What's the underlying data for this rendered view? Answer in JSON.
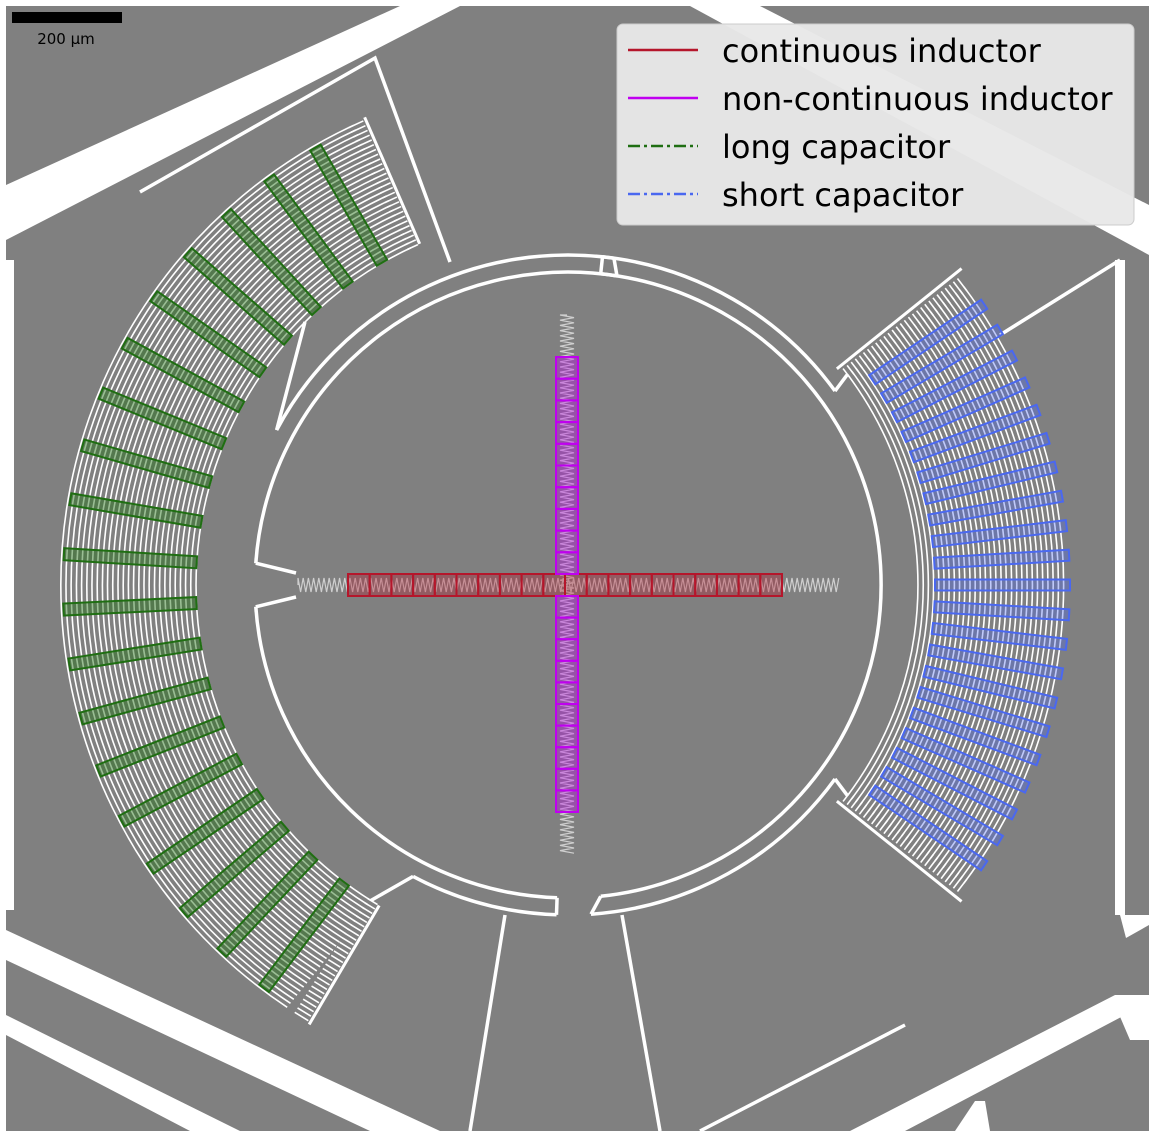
{
  "scale_bar": {
    "label": "200 µm"
  },
  "legend": {
    "items": [
      {
        "label": "continuous inductor",
        "color": "#b5162b",
        "dash": "solid"
      },
      {
        "label": "non-continuous inductor",
        "color": "#c000f0",
        "dash": "solid"
      },
      {
        "label": "long capacitor",
        "color": "#1f6e12",
        "dash": "dashdot"
      },
      {
        "label": "short capacitor",
        "color": "#4a68f0",
        "dash": "dashdot"
      }
    ]
  },
  "colors": {
    "substrate": "#808080",
    "metal": "#ffffff",
    "continuous_inductor": "#b5162b",
    "non_continuous_inductor": "#c000f0",
    "long_capacitor": "#1f6e12",
    "short_capacitor": "#4a68f0"
  },
  "counts": {
    "continuous_inductor_cells": 20,
    "non_continuous_inductor_cells_upper": 10,
    "non_continuous_inductor_cells_lower": 10,
    "long_capacitor_boxes": 19,
    "short_capacitor_boxes": 21
  }
}
